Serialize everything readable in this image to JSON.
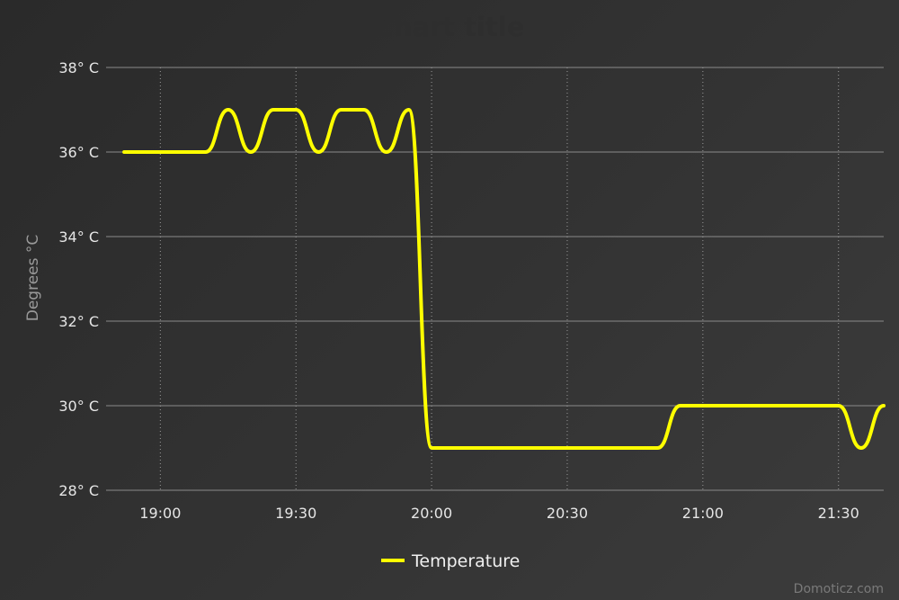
{
  "chart_data": {
    "type": "line",
    "title": "Chart title",
    "xlabel": "",
    "ylabel": "Degrees °C",
    "ylim": [
      28,
      38
    ],
    "yticks": [
      {
        "value": 28,
        "label": "28° C"
      },
      {
        "value": 30,
        "label": "30° C"
      },
      {
        "value": 32,
        "label": "32° C"
      },
      {
        "value": 34,
        "label": "34° C"
      },
      {
        "value": 36,
        "label": "36° C"
      },
      {
        "value": 38,
        "label": "38° C"
      }
    ],
    "xrange": [
      "18:48",
      "21:40"
    ],
    "xticks": [
      "19:00",
      "19:30",
      "20:00",
      "20:30",
      "21:00",
      "21:30"
    ],
    "grid": true,
    "legend_position": "bottom-center",
    "series": [
      {
        "name": "Temperature",
        "color": "#ffff00",
        "x": [
          "18:52",
          "19:10",
          "19:15",
          "19:20",
          "19:25",
          "19:30",
          "19:35",
          "19:40",
          "19:45",
          "19:50",
          "19:55",
          "20:00",
          "20:50",
          "20:55",
          "21:30",
          "21:35",
          "21:40"
        ],
        "values": [
          36,
          36,
          37,
          36,
          37,
          37,
          36,
          37,
          37,
          36,
          37,
          29,
          29,
          30,
          30,
          29,
          30
        ]
      }
    ]
  },
  "credit": "Domoticz.com"
}
